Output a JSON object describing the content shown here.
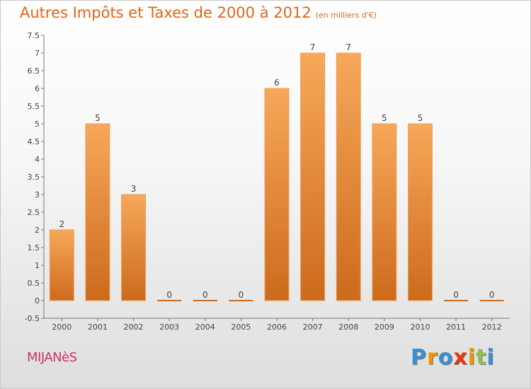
{
  "header": {
    "title": "Autres Impôts et Taxes de 2000 à 2012",
    "subtitle": "(en milliers d'€)"
  },
  "footer": {
    "commune": "MIJANèS",
    "brand_letters": [
      "P",
      "r",
      "o",
      "x",
      "i",
      "t",
      "i"
    ]
  },
  "colors": {
    "title": "#e0651a",
    "commune": "#c8356b",
    "bar_top": "#f7a85a",
    "bar_bottom": "#cd6a1c",
    "brand_letters": [
      "#3a8fd1",
      "#f29400",
      "#3a8fd1",
      "#e63312",
      "#f29400",
      "#8bc34a",
      "#3a8fd1"
    ]
  },
  "chart_data": {
    "type": "bar",
    "categories": [
      "2000",
      "2001",
      "2002",
      "2003",
      "2004",
      "2005",
      "2006",
      "2007",
      "2008",
      "2009",
      "2010",
      "2011",
      "2012"
    ],
    "values": [
      2,
      5,
      3,
      0,
      0,
      0,
      6,
      7,
      7,
      5,
      5,
      0,
      0
    ],
    "data_labels": [
      "2",
      "5",
      "3",
      "0",
      "0",
      "0",
      "6",
      "7",
      "7",
      "5",
      "5",
      "0",
      "0"
    ],
    "ylim": [
      -0.5,
      7.5
    ],
    "yticks": [
      -0.5,
      0,
      0.5,
      1,
      1.5,
      2,
      2.5,
      3,
      3.5,
      4,
      4.5,
      5,
      5.5,
      6,
      6.5,
      7,
      7.5
    ],
    "ytick_labels": [
      "-0.5",
      "0",
      "0.5",
      "1",
      "1.5",
      "2",
      "2.5",
      "3",
      "3.5",
      "4",
      "4.5",
      "5",
      "5.5",
      "6",
      "6.5",
      "7",
      "7.5"
    ],
    "grid": false,
    "xlabel": "",
    "ylabel": ""
  }
}
